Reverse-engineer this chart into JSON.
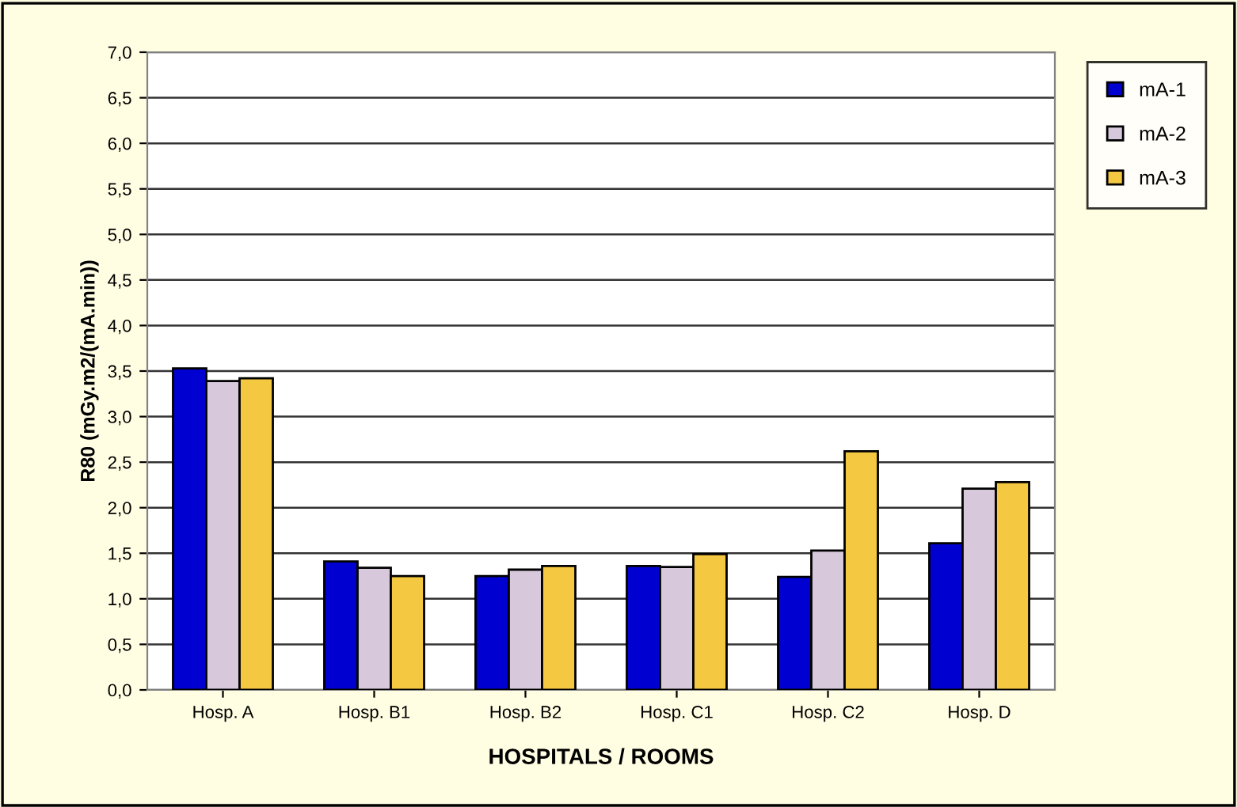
{
  "chart_data": {
    "type": "bar",
    "ylabel": "R80 (mGy.m2/(mA.min))",
    "xlabel": "HOSPITALS / ROOMS",
    "categories": [
      "Hosp. A",
      "Hosp. B1",
      "Hosp. B2",
      "Hosp. C1",
      "Hosp. C2",
      "Hosp. D"
    ],
    "series": [
      {
        "name": "mA-1",
        "color": "#0000d0",
        "values": [
          3.53,
          1.41,
          1.25,
          1.36,
          1.24,
          1.61
        ]
      },
      {
        "name": "mA-2",
        "color": "#d8c8dc",
        "values": [
          3.39,
          1.34,
          1.32,
          1.35,
          1.53,
          2.21
        ]
      },
      {
        "name": "mA-3",
        "color": "#f5c842",
        "values": [
          3.42,
          1.25,
          1.36,
          1.49,
          2.62,
          2.28
        ]
      }
    ],
    "ylim": [
      0,
      7
    ],
    "yticks": [
      {
        "value": 0,
        "label": "0,0"
      },
      {
        "value": 0.5,
        "label": "0,5"
      },
      {
        "value": 1,
        "label": "1,0"
      },
      {
        "value": 1.5,
        "label": "1,5"
      },
      {
        "value": 2,
        "label": "2,0"
      },
      {
        "value": 2.5,
        "label": "2,5"
      },
      {
        "value": 3,
        "label": "3,0"
      },
      {
        "value": 3.5,
        "label": "3,5"
      },
      {
        "value": 4,
        "label": "4,0"
      },
      {
        "value": 4.5,
        "label": "4,5"
      },
      {
        "value": 5,
        "label": "5,0"
      },
      {
        "value": 5.5,
        "label": "5,5"
      },
      {
        "value": 6,
        "label": "6,0"
      },
      {
        "value": 6.5,
        "label": "6,5"
      },
      {
        "value": 7,
        "label": "7,0"
      }
    ],
    "grid": "y",
    "legend": "top right"
  }
}
